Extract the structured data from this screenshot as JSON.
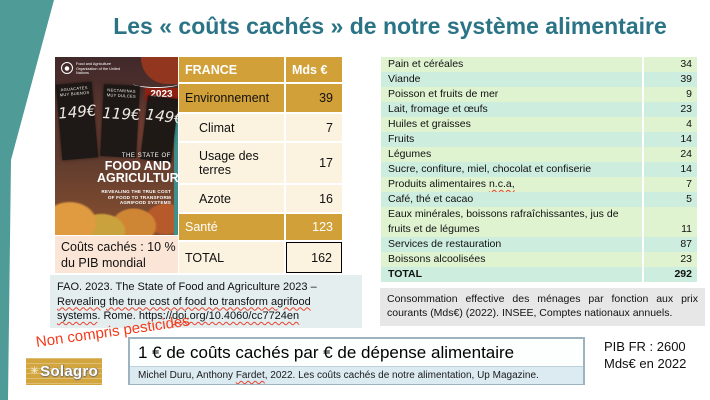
{
  "slide": {
    "title": "Les « coûts cachés » de notre système alimentaire"
  },
  "book_cover": {
    "org": "Food and Agriculture Organization of the United Nations",
    "year": "2023",
    "series": "THE STATE OF",
    "title": "FOOD AND AGRICULTURE",
    "subtitle": "REVEALING THE TRUE COST OF FOOD TO TRANSFORM AGRIFOOD SYSTEMS",
    "boards": [
      {
        "sign": "AGUACATES MUY BUENOS",
        "price": "149€"
      },
      {
        "sign": "NECTARINAS MUY DULCES",
        "price": "119€"
      },
      {
        "sign": "",
        "price": "149€"
      }
    ]
  },
  "hidden_cost_note": "Coûts cachés : 10 % du PIB mondial",
  "fao_citation": "FAO. 2023. The State of Food and Agriculture 2023 – Revealing the true cost of food to transform agrifood systems. Rome. https://doi.org/10.4060/cc7724en",
  "fao_squiggles": [
    "Revealing the true cost of food to transform agrifood systems",
    "doi.org/10.4060/cc7724en"
  ],
  "france_table": {
    "headers": [
      "FRANCE",
      "Mds €"
    ],
    "rows": [
      {
        "label": "Environnement",
        "value": "39",
        "bg": "gold"
      },
      {
        "label": "Climat",
        "value": "7",
        "bg": "light",
        "indent": true
      },
      {
        "label": "Usage des terres",
        "value": "17",
        "bg": "light",
        "indent": true
      },
      {
        "label": "Azote",
        "value": "16",
        "bg": "light",
        "indent": true
      },
      {
        "label": "Santé",
        "value": "123",
        "bg": "gold",
        "white": true
      },
      {
        "label": "TOTAL",
        "value": "162",
        "bg": "light",
        "boxed": true
      }
    ]
  },
  "consumption_table": {
    "rows": [
      {
        "label": "Pain et céréales",
        "value": "34"
      },
      {
        "label": "Viande",
        "value": "39"
      },
      {
        "label": "Poisson et fruits de mer",
        "value": "9"
      },
      {
        "label": "Lait, fromage et œufs",
        "value": "23"
      },
      {
        "label": "Huiles et graisses",
        "value": "4"
      },
      {
        "label": "Fruits",
        "value": "14"
      },
      {
        "label": "Légumes",
        "value": "24"
      },
      {
        "label": "Sucre, confiture, miel, chocolat et confiserie",
        "value": "14"
      },
      {
        "label": "Produits alimentaires n.c.a,",
        "value": "7",
        "squiggle": "n.c.a,"
      },
      {
        "label": "Café, thé et cacao",
        "value": "5"
      },
      {
        "label": "Eaux minérales, boissons rafraîchissantes, jus de fruits et de légumes",
        "value": "11"
      },
      {
        "label": "Services de restauration",
        "value": "87"
      },
      {
        "label": "Boissons alcoolisées",
        "value": "23"
      },
      {
        "label": "TOTAL",
        "value": "292",
        "total": true
      }
    ],
    "caption": "Consommation effective des ménages par fonction aux prix courants (Mds€) (2022). INSEE, Comptes nationaux annuels."
  },
  "pesticides_note": "Non compris pesticides",
  "logo_text": "Solagro",
  "key_message": {
    "headline": "1 € de coûts cachés par € de dépense alimentaire",
    "citation": "Michel Duru, Anthony Fardet, 2022. Les coûts cachés de notre alimentation, Up Magazine."
  },
  "key_message_squiggles": [
    "Fardet"
  ],
  "pib_note": {
    "line1": "PIB FR : 2600",
    "line2": "Mds€ en 2022"
  },
  "colors": {
    "accent_teal": "#4F9B98",
    "title": "#2A7486",
    "accent_gold": "#D2A038",
    "cream": "#FBF2DF",
    "green_a": "#DFF3D1",
    "green_b": "#CDEDDE",
    "note_red": "#F53B1C",
    "year_red": "#8E2012"
  }
}
